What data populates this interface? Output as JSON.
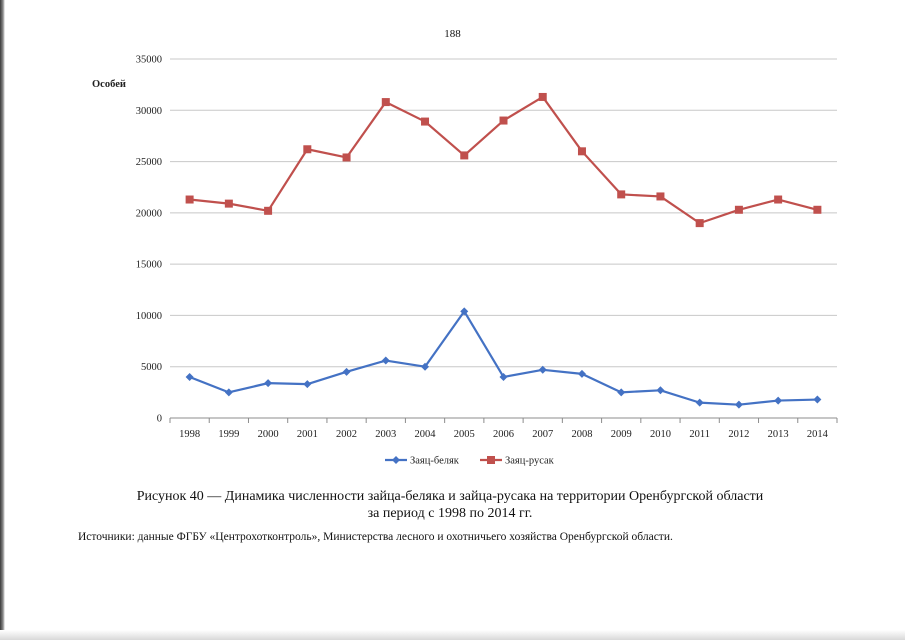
{
  "page": {
    "number": "188",
    "caption_line1": "Рисунок 40 — Динамика численности зайца-беляка и зайца-русака на территории Оренбургской области",
    "caption_line2": "за период с 1998 по 2014 гг.",
    "source": "Источники: данные ФГБУ «Центрохотконтроль», Министерства лесного и охотничьего хозяйства Оренбургской области."
  },
  "chart_data": {
    "type": "line",
    "title": "",
    "xlabel": "",
    "ylabel": "Особей",
    "ylim": [
      0,
      35000
    ],
    "yticks": [
      0,
      5000,
      10000,
      15000,
      20000,
      25000,
      30000,
      35000
    ],
    "grid": true,
    "legend_position": "bottom",
    "categories": [
      "1998",
      "1999",
      "2000",
      "2001",
      "2002",
      "2003",
      "2004",
      "2005",
      "2006",
      "2007",
      "2008",
      "2009",
      "2010",
      "2011",
      "2012",
      "2013",
      "2014"
    ],
    "series": [
      {
        "name": "Заяц-беляк",
        "color": "#4472C4",
        "marker": "diamond",
        "values": [
          4000,
          2500,
          3400,
          3300,
          4500,
          5600,
          5000,
          10400,
          4000,
          4700,
          4300,
          2500,
          2700,
          1500,
          1300,
          1700,
          1800
        ]
      },
      {
        "name": "Заяц-русак",
        "color": "#C0504D",
        "marker": "square",
        "values": [
          21300,
          20900,
          20200,
          26200,
          25400,
          30800,
          28900,
          25600,
          29000,
          31300,
          26000,
          21800,
          21600,
          19000,
          20300,
          21300,
          20300
        ]
      }
    ]
  }
}
